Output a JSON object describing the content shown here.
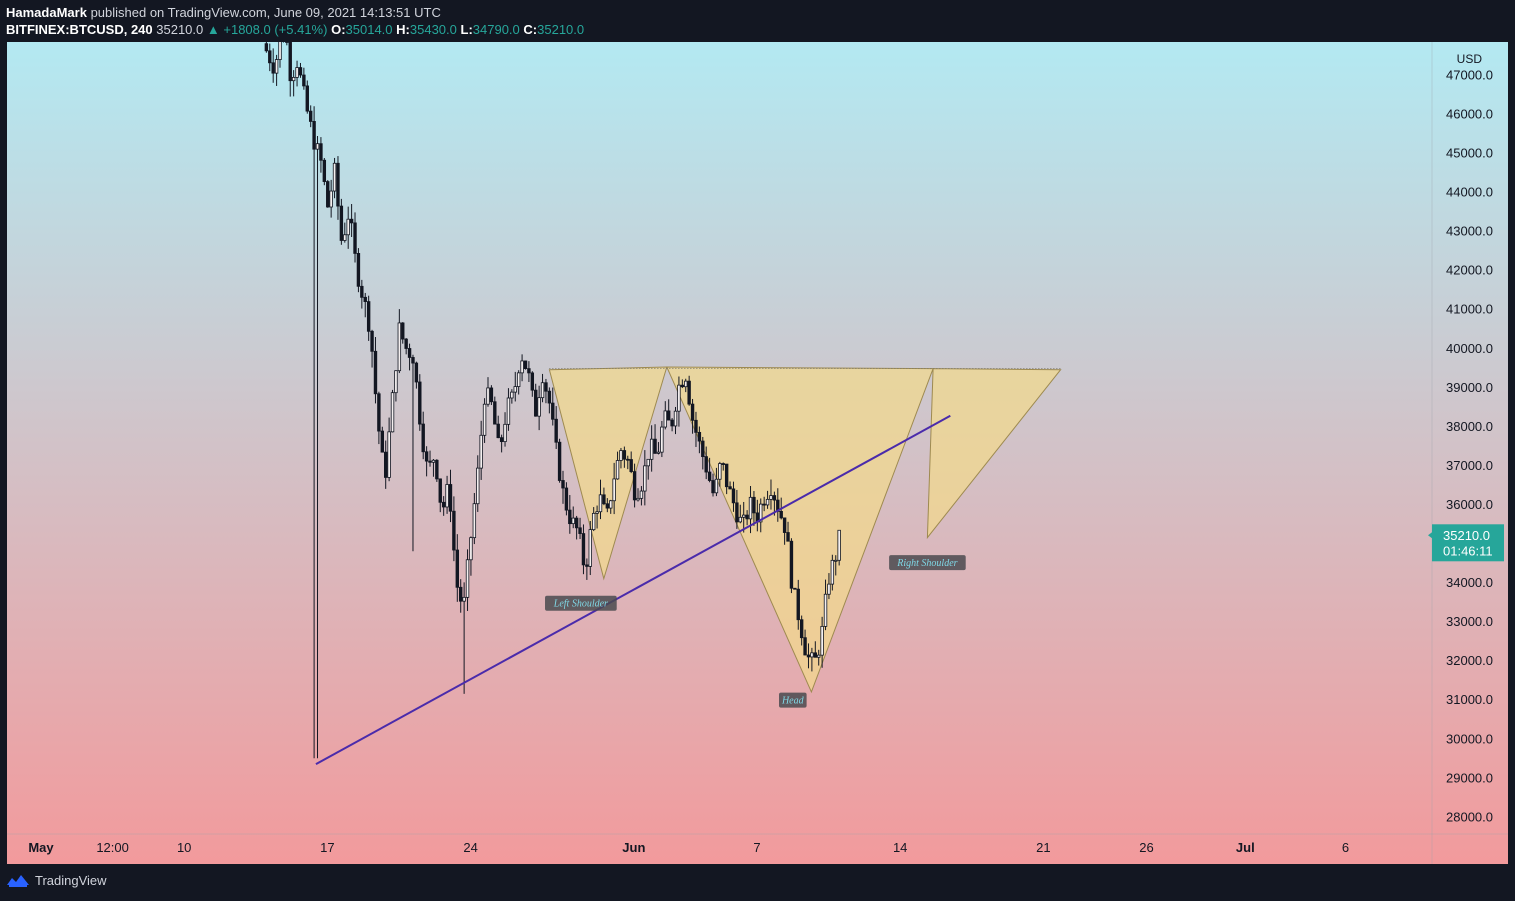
{
  "header": {
    "author": "HamadaMark",
    "published": "published on TradingView.com, June 09, 2021 14:13:51 UTC",
    "symbol": "BITFINEX:BTCUSD, 240",
    "last": "35210.0",
    "change": "▲ +1808.0 (+5.41%)",
    "o_label": "O:",
    "o_val": "35014.0",
    "h_label": "H:",
    "h_val": "35430.0",
    "l_label": "L:",
    "l_val": "34790.0",
    "c_label": "C:",
    "c_val": "35210.0"
  },
  "footer": {
    "brand": "TradingView"
  },
  "chart_data": {
    "type": "candlestick",
    "currency": "USD",
    "ylim": [
      27500,
      48000
    ],
    "y_ticks": [
      "28000.0",
      "29000.0",
      "30000.0",
      "31000.0",
      "32000.0",
      "33000.0",
      "34000.0",
      "35000.0",
      "36000.0",
      "37000.0",
      "38000.0",
      "39000.0",
      "40000.0",
      "41000.0",
      "42000.0",
      "43000.0",
      "44000.0",
      "45000.0",
      "46000.0",
      "47000.0"
    ],
    "x_ticks": [
      {
        "label": "May",
        "day": 0,
        "bold": true
      },
      {
        "label": "12:00",
        "day": 0.5
      },
      {
        "label": "10",
        "day": 1.0
      },
      {
        "label": "17",
        "day": 2.0
      },
      {
        "label": "24",
        "day": 3.0
      },
      {
        "label": "Jun",
        "day": 4.14,
        "bold": true
      },
      {
        "label": "7",
        "day": 5.0
      },
      {
        "label": "14",
        "day": 6.0
      },
      {
        "label": "21",
        "day": 7.0
      },
      {
        "label": "26",
        "day": 7.72
      },
      {
        "label": "Jul",
        "day": 8.41,
        "bold": true
      },
      {
        "label": "6",
        "day": 9.11
      }
    ],
    "price_path": [
      [
        1.55,
        47800
      ],
      [
        1.63,
        47200
      ],
      [
        1.7,
        48300
      ],
      [
        1.75,
        46800
      ],
      [
        1.78,
        47500
      ],
      [
        1.85,
        46200
      ],
      [
        1.9,
        45400
      ],
      [
        1.96,
        44700
      ],
      [
        2.0,
        43600
      ],
      [
        2.05,
        44500
      ],
      [
        2.1,
        42700
      ],
      [
        2.15,
        43500
      ],
      [
        2.2,
        42100
      ],
      [
        2.3,
        40500
      ],
      [
        2.35,
        38200
      ],
      [
        2.4,
        36600
      ],
      [
        2.45,
        38500
      ],
      [
        2.5,
        40500
      ],
      [
        2.55,
        40000
      ],
      [
        2.6,
        39800
      ],
      [
        2.65,
        38100
      ],
      [
        2.7,
        36800
      ],
      [
        2.75,
        37300
      ],
      [
        2.8,
        35800
      ],
      [
        2.85,
        36500
      ],
      [
        2.9,
        34000
      ],
      [
        2.95,
        33300
      ],
      [
        3.0,
        35100
      ],
      [
        3.05,
        36800
      ],
      [
        3.1,
        38900
      ],
      [
        3.15,
        38500
      ],
      [
        3.2,
        37300
      ],
      [
        3.25,
        38400
      ],
      [
        3.3,
        38800
      ],
      [
        3.35,
        39900
      ],
      [
        3.4,
        39400
      ],
      [
        3.45,
        38300
      ],
      [
        3.5,
        39400
      ],
      [
        3.55,
        38600
      ],
      [
        3.6,
        37300
      ],
      [
        3.65,
        36200
      ],
      [
        3.7,
        35600
      ],
      [
        3.75,
        35300
      ],
      [
        3.8,
        34300
      ],
      [
        3.85,
        35600
      ],
      [
        3.9,
        36200
      ],
      [
        3.95,
        35600
      ],
      [
        4.0,
        36700
      ],
      [
        4.05,
        37400
      ],
      [
        4.1,
        37100
      ],
      [
        4.15,
        36300
      ],
      [
        4.2,
        36600
      ],
      [
        4.25,
        37500
      ],
      [
        4.3,
        37200
      ],
      [
        4.35,
        38200
      ],
      [
        4.4,
        38000
      ],
      [
        4.45,
        39000
      ],
      [
        4.5,
        39400
      ],
      [
        4.55,
        38200
      ],
      [
        4.6,
        37500
      ],
      [
        4.65,
        36900
      ],
      [
        4.7,
        36200
      ],
      [
        4.75,
        37100
      ],
      [
        4.8,
        36400
      ],
      [
        4.85,
        35900
      ],
      [
        4.9,
        35400
      ],
      [
        4.95,
        36000
      ],
      [
        5.0,
        35700
      ],
      [
        5.05,
        36200
      ],
      [
        5.1,
        36500
      ],
      [
        5.15,
        35900
      ],
      [
        5.2,
        35400
      ],
      [
        5.25,
        33800
      ],
      [
        5.3,
        33000
      ],
      [
        5.35,
        32100
      ],
      [
        5.4,
        31900
      ],
      [
        5.45,
        32600
      ],
      [
        5.5,
        34100
      ],
      [
        5.55,
        34700
      ],
      [
        5.58,
        35210
      ]
    ],
    "last_price": 35210.0,
    "last_price_label": "35210.0",
    "countdown": "01:46:11",
    "trendline": [
      [
        1.92,
        29350
      ],
      [
        4.37,
        35600
      ],
      [
        6.35,
        38270
      ]
    ],
    "neckline_price": 39480,
    "pattern_triangles": [
      {
        "points": [
          [
            3.55,
            39450
          ],
          [
            3.93,
            34100
          ],
          [
            4.37,
            39520
          ]
        ]
      },
      {
        "points": [
          [
            4.37,
            39520
          ],
          [
            5.38,
            31200
          ],
          [
            6.23,
            39480
          ]
        ]
      },
      {
        "points": [
          [
            6.23,
            39480
          ],
          [
            6.19,
            35150
          ],
          [
            7.12,
            39450
          ]
        ]
      }
    ],
    "annotations": [
      {
        "text": "Left Shoulder",
        "day": 3.77,
        "price": 33470
      },
      {
        "text": "Head",
        "day": 5.25,
        "price": 30990
      },
      {
        "text": "Right Shoulder",
        "day": 6.19,
        "price": 34510
      }
    ],
    "colors": {
      "bg_top": "#b3e9f2",
      "bg_bottom": "#f29a9c",
      "candle": "#131722",
      "trendline": "#4a2bab",
      "pattern_fill": "#f2da8c",
      "price_tag": "#26a69a"
    }
  }
}
